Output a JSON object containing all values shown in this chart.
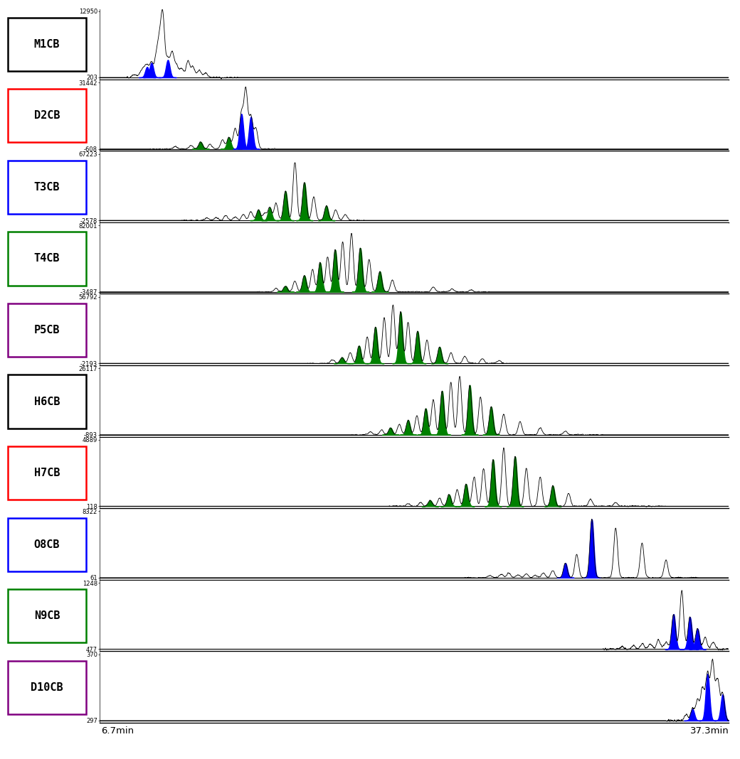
{
  "panels": [
    {
      "label": "M1CB",
      "label_color": "black",
      "box_color": "black",
      "ymax": 12950,
      "ymin": 203,
      "peak_positions": [
        0.055,
        0.065,
        0.07,
        0.075,
        0.082,
        0.09,
        0.095,
        0.1,
        0.108,
        0.115,
        0.122,
        0.13,
        0.14,
        0.148,
        0.158,
        0.168
      ],
      "peak_heights": [
        0.05,
        0.08,
        0.12,
        0.18,
        0.25,
        0.35,
        0.5,
        1.0,
        0.3,
        0.42,
        0.2,
        0.15,
        0.28,
        0.18,
        0.12,
        0.08
      ],
      "peak_colors": [
        "black",
        "black",
        "black",
        "blue",
        "blue",
        "black",
        "black",
        "black",
        "blue",
        "black",
        "black",
        "black",
        "black",
        "black",
        "black",
        "black"
      ],
      "noise_region": [
        0.04,
        0.22
      ],
      "noise_level": 0.015
    },
    {
      "label": "D2CB",
      "label_color": "red",
      "box_color": "red",
      "ymax": 31442,
      "ymin": -608,
      "peak_positions": [
        0.12,
        0.145,
        0.16,
        0.175,
        0.195,
        0.205,
        0.215,
        0.225,
        0.232,
        0.24,
        0.248
      ],
      "peak_heights": [
        0.04,
        0.06,
        0.12,
        0.08,
        0.15,
        0.2,
        0.35,
        0.6,
        1.0,
        0.55,
        0.35
      ],
      "peak_colors": [
        "black",
        "black",
        "green",
        "black",
        "black",
        "green",
        "black",
        "blue",
        "black",
        "blue",
        "black"
      ],
      "noise_region": [
        0.08,
        0.28
      ],
      "noise_level": 0.012
    },
    {
      "label": "T3CB",
      "label_color": "blue",
      "box_color": "blue",
      "ymax": 67223,
      "ymin": -2578,
      "peak_positions": [
        0.17,
        0.185,
        0.2,
        0.215,
        0.228,
        0.24,
        0.252,
        0.262,
        0.27,
        0.28,
        0.295,
        0.31,
        0.325,
        0.34,
        0.36,
        0.375,
        0.39
      ],
      "peak_heights": [
        0.04,
        0.05,
        0.08,
        0.06,
        0.1,
        0.15,
        0.18,
        0.12,
        0.22,
        0.3,
        0.5,
        1.0,
        0.65,
        0.4,
        0.25,
        0.18,
        0.1
      ],
      "peak_colors": [
        "black",
        "black",
        "black",
        "black",
        "black",
        "black",
        "green",
        "black",
        "green",
        "black",
        "green",
        "black",
        "green",
        "black",
        "green",
        "black",
        "black"
      ],
      "noise_region": [
        0.13,
        0.42
      ],
      "noise_level": 0.012
    },
    {
      "label": "T4CB",
      "label_color": "green",
      "box_color": "green",
      "ymax": 82001,
      "ymin": -3487,
      "peak_positions": [
        0.28,
        0.295,
        0.31,
        0.325,
        0.338,
        0.35,
        0.362,
        0.374,
        0.386,
        0.4,
        0.414,
        0.428,
        0.445,
        0.465,
        0.53,
        0.56,
        0.59
      ],
      "peak_heights": [
        0.06,
        0.1,
        0.18,
        0.28,
        0.38,
        0.5,
        0.6,
        0.72,
        0.85,
        1.0,
        0.75,
        0.55,
        0.35,
        0.2,
        0.08,
        0.05,
        0.03
      ],
      "peak_colors": [
        "black",
        "green",
        "black",
        "green",
        "black",
        "green",
        "black",
        "green",
        "black",
        "black",
        "green",
        "black",
        "green",
        "black",
        "black",
        "black",
        "black"
      ],
      "noise_region": [
        0.25,
        0.62
      ],
      "noise_level": 0.01
    },
    {
      "label": "P5CB",
      "label_color": "purple",
      "box_color": "purple",
      "ymax": 56792,
      "ymin": -2193,
      "peak_positions": [
        0.37,
        0.385,
        0.398,
        0.412,
        0.425,
        0.438,
        0.452,
        0.466,
        0.478,
        0.49,
        0.505,
        0.52,
        0.54,
        0.558,
        0.58,
        0.608,
        0.635
      ],
      "peak_heights": [
        0.06,
        0.1,
        0.18,
        0.3,
        0.45,
        0.62,
        0.78,
        1.0,
        0.88,
        0.7,
        0.55,
        0.4,
        0.28,
        0.18,
        0.12,
        0.08,
        0.05
      ],
      "peak_colors": [
        "black",
        "green",
        "black",
        "green",
        "black",
        "green",
        "black",
        "black",
        "green",
        "black",
        "green",
        "black",
        "green",
        "black",
        "black",
        "black",
        "black"
      ],
      "noise_region": [
        0.33,
        0.65
      ],
      "noise_level": 0.01
    },
    {
      "label": "H6CB",
      "label_color": "black",
      "box_color": "black",
      "ymax": 26117,
      "ymin": -893,
      "peak_positions": [
        0.43,
        0.448,
        0.462,
        0.476,
        0.49,
        0.504,
        0.518,
        0.53,
        0.544,
        0.558,
        0.572,
        0.588,
        0.605,
        0.622,
        0.642,
        0.668,
        0.7,
        0.74
      ],
      "peak_heights": [
        0.05,
        0.08,
        0.12,
        0.18,
        0.25,
        0.32,
        0.45,
        0.6,
        0.75,
        0.9,
        1.0,
        0.85,
        0.65,
        0.48,
        0.35,
        0.22,
        0.12,
        0.06
      ],
      "peak_colors": [
        "black",
        "black",
        "green",
        "black",
        "green",
        "black",
        "green",
        "black",
        "green",
        "black",
        "black",
        "green",
        "black",
        "green",
        "black",
        "black",
        "black",
        "black"
      ],
      "noise_region": [
        0.4,
        0.8
      ],
      "noise_level": 0.01
    },
    {
      "label": "H7CB",
      "label_color": "red",
      "box_color": "red",
      "ymax": 4889,
      "ymin": 118,
      "peak_positions": [
        0.49,
        0.51,
        0.525,
        0.54,
        0.555,
        0.568,
        0.582,
        0.595,
        0.61,
        0.625,
        0.642,
        0.66,
        0.678,
        0.7,
        0.72,
        0.745,
        0.78,
        0.82
      ],
      "peak_heights": [
        0.04,
        0.06,
        0.1,
        0.14,
        0.2,
        0.28,
        0.38,
        0.5,
        0.65,
        0.8,
        1.0,
        0.85,
        0.65,
        0.5,
        0.35,
        0.22,
        0.12,
        0.06
      ],
      "peak_colors": [
        "black",
        "black",
        "green",
        "black",
        "green",
        "black",
        "green",
        "black",
        "black",
        "green",
        "black",
        "green",
        "black",
        "black",
        "green",
        "black",
        "black",
        "black"
      ],
      "noise_region": [
        0.46,
        0.9
      ],
      "noise_level": 0.012
    },
    {
      "label": "O8CB",
      "label_color": "blue",
      "box_color": "blue",
      "ymax": 8322,
      "ymin": 61,
      "peak_positions": [
        0.62,
        0.638,
        0.65,
        0.665,
        0.678,
        0.692,
        0.705,
        0.72,
        0.74,
        0.758,
        0.782,
        0.82,
        0.862,
        0.9
      ],
      "peak_heights": [
        0.04,
        0.06,
        0.08,
        0.05,
        0.06,
        0.04,
        0.08,
        0.12,
        0.25,
        0.4,
        1.0,
        0.85,
        0.6,
        0.3
      ],
      "peak_colors": [
        "black",
        "black",
        "black",
        "black",
        "black",
        "black",
        "black",
        "black",
        "blue",
        "black",
        "blue",
        "black",
        "black",
        "black"
      ],
      "noise_region": [
        0.58,
        0.95
      ],
      "noise_level": 0.01
    },
    {
      "label": "N9CB",
      "label_color": "green",
      "box_color": "green",
      "ymax": 1248,
      "ymin": 477,
      "peak_positions": [
        0.83,
        0.848,
        0.862,
        0.875,
        0.888,
        0.9,
        0.912,
        0.925,
        0.938,
        0.95,
        0.962,
        0.975
      ],
      "peak_heights": [
        0.04,
        0.06,
        0.1,
        0.08,
        0.15,
        0.12,
        0.6,
        1.0,
        0.55,
        0.35,
        0.2,
        0.12
      ],
      "peak_colors": [
        "black",
        "black",
        "black",
        "black",
        "black",
        "black",
        "blue",
        "black",
        "blue",
        "blue",
        "black",
        "black"
      ],
      "noise_region": [
        0.8,
        1.0
      ],
      "noise_level": 0.02
    },
    {
      "label": "D10CB",
      "label_color": "purple",
      "box_color": "purple",
      "ymax": 370,
      "ymin": 297,
      "peak_positions": [
        0.932,
        0.942,
        0.95,
        0.958,
        0.966,
        0.974,
        0.982,
        0.99
      ],
      "peak_heights": [
        0.1,
        0.2,
        0.35,
        0.55,
        0.8,
        1.0,
        0.7,
        0.45
      ],
      "peak_colors": [
        "black",
        "blue",
        "black",
        "black",
        "blue",
        "black",
        "black",
        "blue"
      ],
      "noise_region": [
        0.9,
        1.0
      ],
      "noise_level": 0.03
    }
  ],
  "xmin": 6.7,
  "xmax": 37.3,
  "xlabel_left": "6.7min",
  "xlabel_right": "37.3min"
}
